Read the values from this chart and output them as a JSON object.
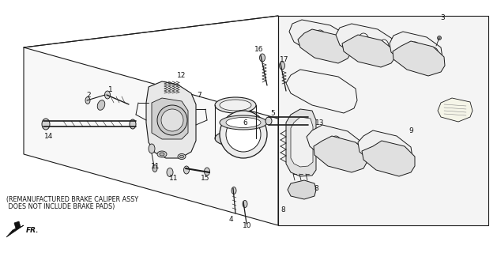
{
  "bg_color": "#ffffff",
  "line_color": "#1a1a1a",
  "text_color": "#111111",
  "note_line1": "(REMANUFACTURED BRAKE CALIPER ASSY",
  "note_line2": " DOES NOT INCLUDE BRAKE PADS)",
  "font_size_label": 6.5,
  "font_size_note": 5.8
}
